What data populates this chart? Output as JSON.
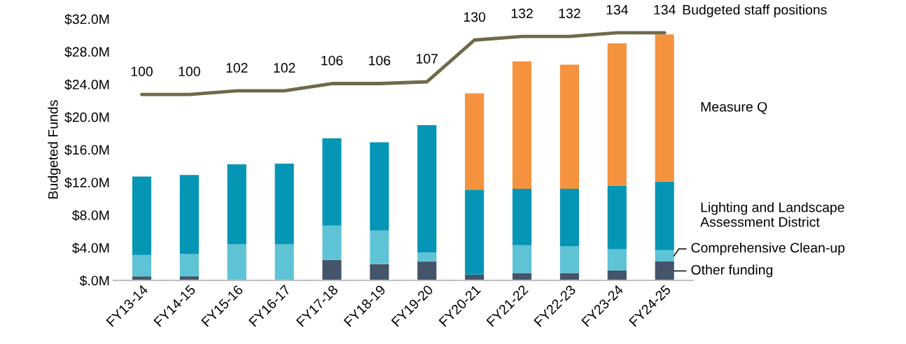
{
  "chart_data": {
    "type": "bar",
    "stacked": true,
    "ylabel": "Budgeted Funds",
    "categories": [
      "FY13-14",
      "FY14-15",
      "FY15-16",
      "FY16-17",
      "FY17-18",
      "FY18-19",
      "FY19-20",
      "FY20-21",
      "FY21-22",
      "FY22-23",
      "FY23-24",
      "FY24-25"
    ],
    "ylim": [
      0,
      32
    ],
    "yticks": [
      {
        "value": 0,
        "label": "$.0M"
      },
      {
        "value": 4,
        "label": "$4.0M"
      },
      {
        "value": 8,
        "label": "$8.0M"
      },
      {
        "value": 12,
        "label": "$12.0M"
      },
      {
        "value": 16,
        "label": "$16.0M"
      },
      {
        "value": 20,
        "label": "$20.0M"
      },
      {
        "value": 24,
        "label": "$24.0M"
      },
      {
        "value": 28,
        "label": "$28.0M"
      },
      {
        "value": 32,
        "label": "$32.0M"
      }
    ],
    "tick_labels": [
      "x",
      "y"
    ],
    "legend": false,
    "grid": false,
    "series": [
      {
        "name": "Other funding",
        "color": "#44546a",
        "values": [
          0.5,
          0.5,
          0,
          0,
          2.5,
          2.0,
          2.3,
          0.7,
          0.9,
          0.9,
          1.2,
          2.3
        ]
      },
      {
        "name": "Comprehensive Clean-up",
        "color": "#5fc3d6",
        "values": [
          2.6,
          2.7,
          4.4,
          4.4,
          4.2,
          4.1,
          1.1,
          0,
          3.4,
          3.3,
          2.6,
          1.4
        ]
      },
      {
        "name": "Lighting and Landscape Assessment District",
        "color": "#0595b5",
        "values": [
          9.6,
          9.7,
          9.8,
          9.9,
          10.7,
          10.8,
          15.6,
          10.4,
          6.9,
          7.0,
          7.8,
          8.4
        ]
      },
      {
        "name": "Measure Q",
        "color": "#f5923e",
        "values": [
          0,
          0,
          0,
          0,
          0,
          0,
          0,
          11.8,
          15.6,
          15.2,
          17.4,
          18.0
        ]
      },
      {
        "name": "Budgeted staff positions",
        "type": "line",
        "axis": "y2",
        "color": "#6e6a4a",
        "data_labels": true,
        "values": [
          100,
          100,
          102,
          102,
          106,
          106,
          107,
          130,
          132,
          132,
          134,
          134
        ]
      }
    ]
  }
}
